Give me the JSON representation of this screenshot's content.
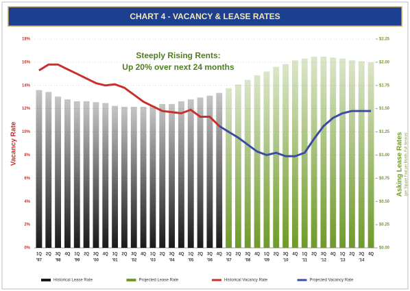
{
  "chart_data": {
    "type": "bar_line",
    "title": "CHART 4 - VACANCY & LEASE RATES",
    "annotation": [
      "Steeply Rising Rents:",
      "Up 20% over next 24 months"
    ],
    "y_label": "Vacancy Rate",
    "y2_label": "Asking Lease Rates",
    "y2_sublabel": "(per Square Foot per Month, Full Service)",
    "categories": [
      "1Q",
      "2Q",
      "3Q",
      "4Q",
      "1Q",
      "2Q",
      "3Q",
      "4Q",
      "1Q",
      "2Q",
      "3Q",
      "4Q",
      "1Q",
      "2Q",
      "3Q",
      "4Q",
      "1Q",
      "2Q",
      "3Q",
      "4Q",
      "1Q",
      "2Q",
      "3Q",
      "4Q",
      "1Q",
      "2Q",
      "3Q",
      "4Q",
      "1Q",
      "2Q",
      "3Q",
      "4Q",
      "1Q",
      "2Q",
      "3Q",
      "4Q"
    ],
    "category_years": [
      "'97",
      null,
      "'98",
      null,
      "'99",
      null,
      "'00",
      null,
      "'01",
      null,
      "'02",
      null,
      "'03",
      null,
      "'04",
      null,
      "'05",
      null,
      "'06",
      null,
      "'07",
      null,
      "'08",
      null,
      "'09",
      null,
      "'10",
      null,
      "'11",
      null,
      "'12",
      null,
      "'13",
      null,
      "'14",
      null
    ],
    "ylim": [
      0,
      18
    ],
    "yticks": [
      {
        "value": 0,
        "label": "0%"
      },
      {
        "value": 2,
        "label": "2%"
      },
      {
        "value": 4,
        "label": "4%"
      },
      {
        "value": 6,
        "label": "6%"
      },
      {
        "value": 8,
        "label": "8%"
      },
      {
        "value": 10,
        "label": "10%"
      },
      {
        "value": 12,
        "label": "12%"
      },
      {
        "value": 14,
        "label": "14%"
      },
      {
        "value": 16,
        "label": "16%"
      },
      {
        "value": 18,
        "label": "18%"
      }
    ],
    "y2lim": [
      0,
      2.25
    ],
    "y2ticks": [
      {
        "value": 0,
        "label": "$0.00"
      },
      {
        "value": 0.25,
        "label": "$0.25"
      },
      {
        "value": 0.5,
        "label": "$0.50"
      },
      {
        "value": 0.75,
        "label": "$0.75"
      },
      {
        "value": 1,
        "label": "$1.00"
      },
      {
        "value": 1.25,
        "label": "$1.25"
      },
      {
        "value": 1.5,
        "label": "$1.50"
      },
      {
        "value": 1.75,
        "label": "$1.75"
      },
      {
        "value": 2,
        "label": "$2.00"
      },
      {
        "value": 2.25,
        "label": "$2.25"
      }
    ],
    "grid": true,
    "series": [
      {
        "name": "Historical Lease Rate",
        "kind": "bar",
        "axis": "y2",
        "color": "#1a1a1a",
        "values": [
          1.7,
          1.68,
          1.63,
          1.6,
          1.58,
          1.58,
          1.57,
          1.56,
          1.53,
          1.52,
          1.52,
          1.52,
          1.53,
          1.55,
          1.55,
          1.58,
          1.6,
          1.62,
          1.64,
          1.67,
          null,
          null,
          null,
          null,
          null,
          null,
          null,
          null,
          null,
          null,
          null,
          null,
          null,
          null,
          null,
          null
        ]
      },
      {
        "name": "Projected Lease Rate",
        "kind": "bar",
        "axis": "y2",
        "color": "#6f9a2a",
        "values": [
          null,
          null,
          null,
          null,
          null,
          null,
          null,
          null,
          null,
          null,
          null,
          null,
          null,
          null,
          null,
          null,
          null,
          null,
          null,
          null,
          1.72,
          1.76,
          1.81,
          1.86,
          1.9,
          1.95,
          1.98,
          2.02,
          2.04,
          2.06,
          2.06,
          2.05,
          2.04,
          2.02,
          2.01,
          2.0
        ]
      },
      {
        "name": "Historical Vacancy Rate",
        "kind": "line",
        "color": "#c9302c",
        "values": [
          15.3,
          15.8,
          15.8,
          15.4,
          15.0,
          14.6,
          14.2,
          14.0,
          14.1,
          13.8,
          13.2,
          12.6,
          12.2,
          11.8,
          11.7,
          11.6,
          11.9,
          11.3,
          11.3,
          10.5,
          null,
          null,
          null,
          null,
          null,
          null,
          null,
          null,
          null,
          null,
          null,
          null,
          null,
          null,
          null,
          null
        ]
      },
      {
        "name": "Projected Vacancy Rate",
        "kind": "line",
        "color": "#3b4ca3",
        "values": [
          null,
          null,
          null,
          null,
          null,
          null,
          null,
          null,
          null,
          null,
          null,
          null,
          null,
          null,
          null,
          null,
          null,
          null,
          null,
          10.5,
          10.0,
          9.5,
          8.9,
          8.3,
          8.0,
          8.2,
          7.9,
          7.9,
          8.2,
          9.4,
          10.5,
          11.2,
          11.6,
          11.8,
          11.8,
          11.8
        ]
      }
    ]
  }
}
